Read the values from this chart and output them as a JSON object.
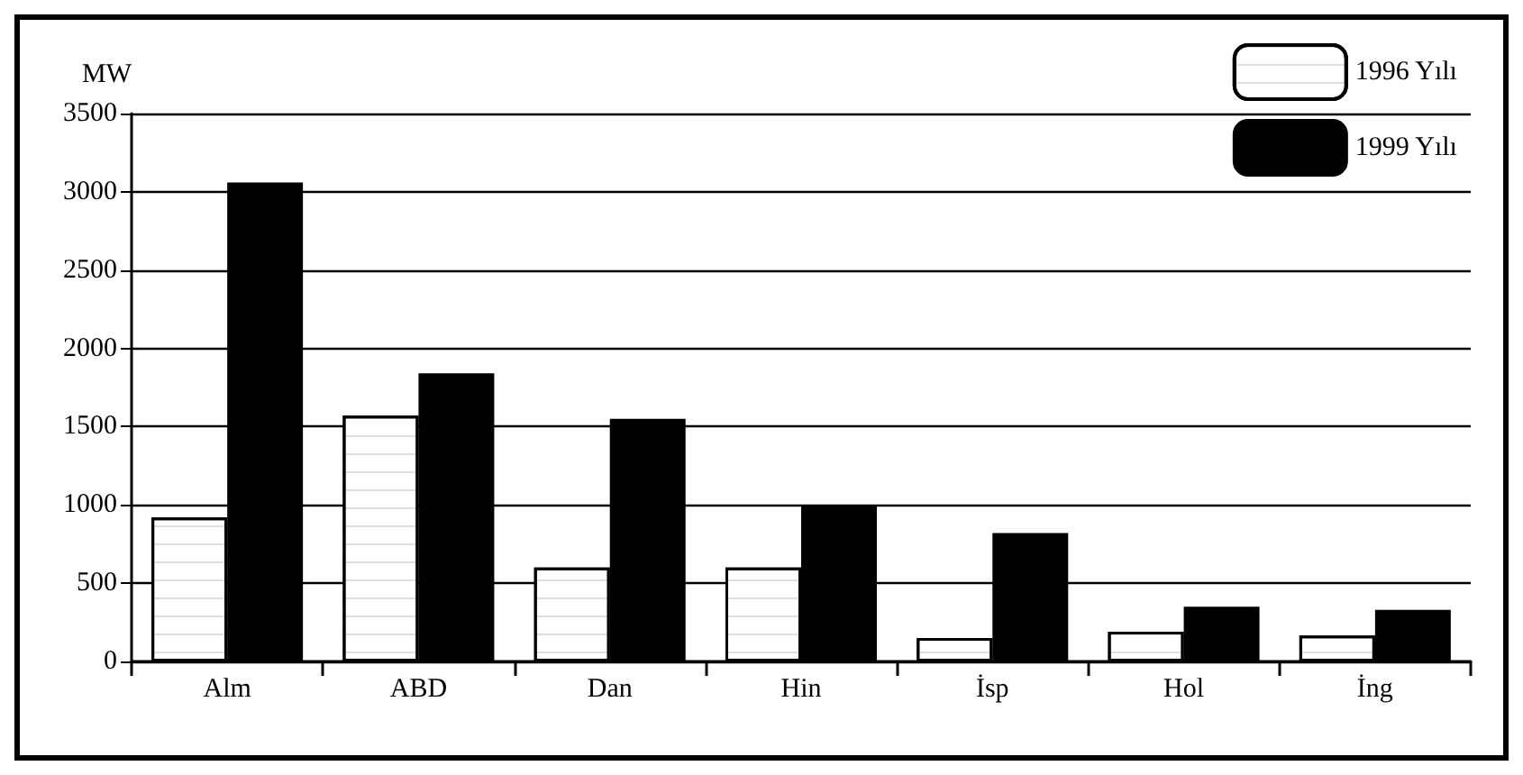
{
  "chart_data": {
    "type": "bar",
    "ylabel": "MW",
    "categories": [
      "Alm",
      "ABD",
      "Dan",
      "Hin",
      "İsp",
      "Hol",
      "İng"
    ],
    "series": [
      {
        "name": "1996 Yılı",
        "color": "#ffffff",
        "values": [
          920,
          1570,
          600,
          600,
          150,
          190,
          165
        ]
      },
      {
        "name": "1999 Yılı",
        "color": "#000000",
        "values": [
          3060,
          1840,
          1550,
          1000,
          820,
          350,
          330
        ]
      }
    ],
    "ylim": [
      0,
      3500
    ],
    "yticks": [
      0,
      500,
      1000,
      1500,
      2000,
      2500,
      3000,
      3500
    ],
    "grid": "y",
    "legend": "top right"
  }
}
